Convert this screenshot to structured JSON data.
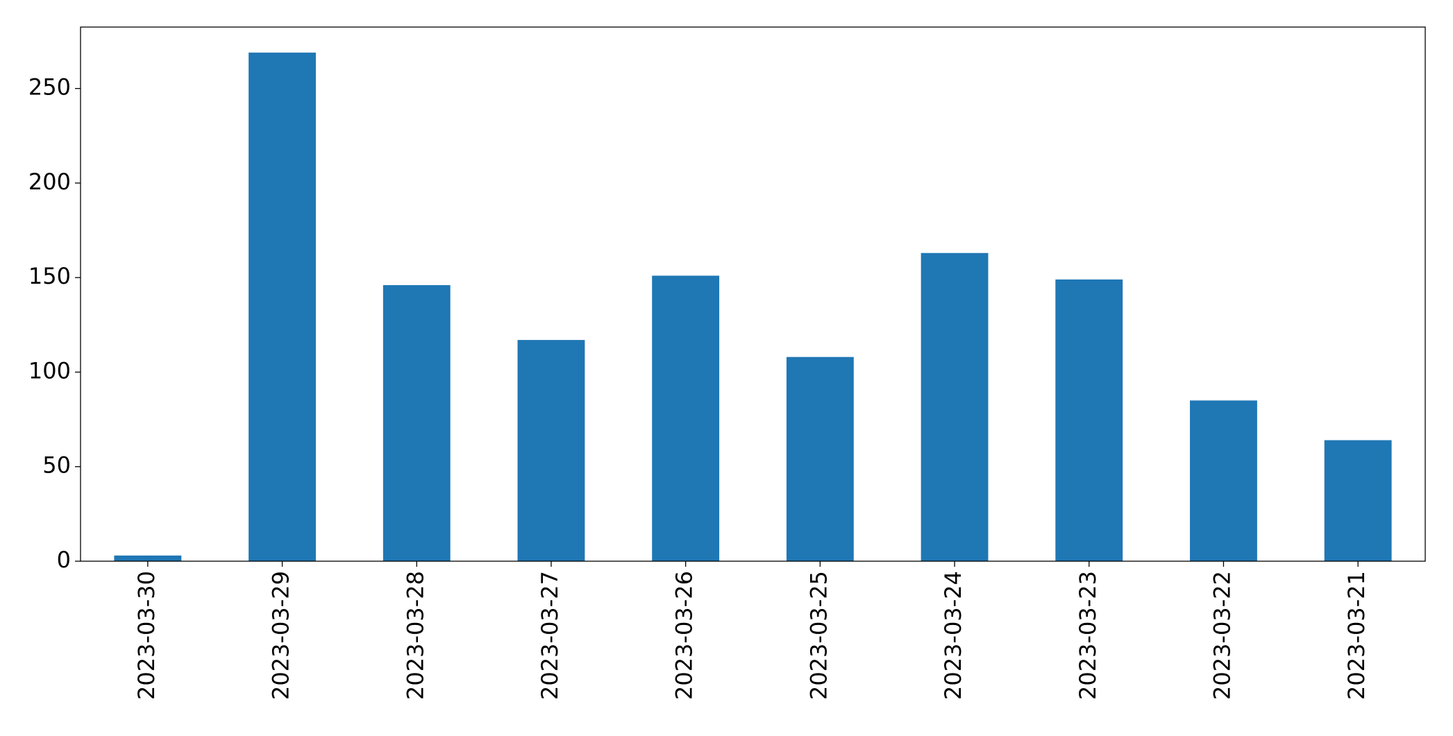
{
  "chart_data": {
    "type": "bar",
    "categories": [
      "2023-03-30",
      "2023-03-29",
      "2023-03-28",
      "2023-03-27",
      "2023-03-26",
      "2023-03-25",
      "2023-03-24",
      "2023-03-23",
      "2023-03-22",
      "2023-03-21"
    ],
    "values": [
      3,
      269,
      146,
      117,
      151,
      108,
      163,
      149,
      85,
      64
    ],
    "color": "#1f77b4",
    "ylim": [
      0,
      282.5
    ],
    "yticks": [
      0,
      50,
      100,
      150,
      200,
      250
    ],
    "grid": false
  }
}
